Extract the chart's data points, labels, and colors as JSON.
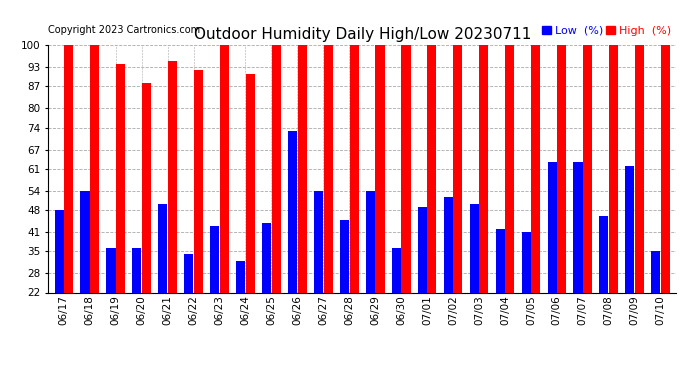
{
  "title": "Outdoor Humidity Daily High/Low 20230711",
  "copyright": "Copyright 2023 Cartronics.com",
  "legend_low_label": "Low  (%)",
  "legend_high_label": "High  (%)",
  "dates": [
    "06/17",
    "06/18",
    "06/19",
    "06/20",
    "06/21",
    "06/22",
    "06/23",
    "06/24",
    "06/25",
    "06/26",
    "06/27",
    "06/28",
    "06/29",
    "06/30",
    "07/01",
    "07/02",
    "07/03",
    "07/04",
    "07/05",
    "07/06",
    "07/07",
    "07/08",
    "07/09",
    "07/10"
  ],
  "high_values": [
    100,
    100,
    94,
    88,
    95,
    92,
    100,
    91,
    100,
    100,
    100,
    100,
    100,
    100,
    100,
    100,
    100,
    100,
    100,
    100,
    100,
    100,
    100,
    100
  ],
  "low_values": [
    48,
    54,
    36,
    36,
    50,
    34,
    43,
    32,
    44,
    73,
    54,
    45,
    54,
    36,
    49,
    52,
    50,
    42,
    41,
    63,
    63,
    46,
    62,
    35
  ],
  "high_color": "#FF0000",
  "low_color": "#0000FF",
  "bg_color": "#FFFFFF",
  "grid_color": "#AAAAAA",
  "yticks": [
    22,
    28,
    35,
    41,
    48,
    54,
    61,
    67,
    74,
    80,
    87,
    93,
    100
  ],
  "ymin": 22,
  "ymax": 100,
  "title_fontsize": 11,
  "copyright_fontsize": 7,
  "legend_fontsize": 8,
  "tick_fontsize": 7.5,
  "bar_width": 0.35,
  "bar_gap": 0.02
}
